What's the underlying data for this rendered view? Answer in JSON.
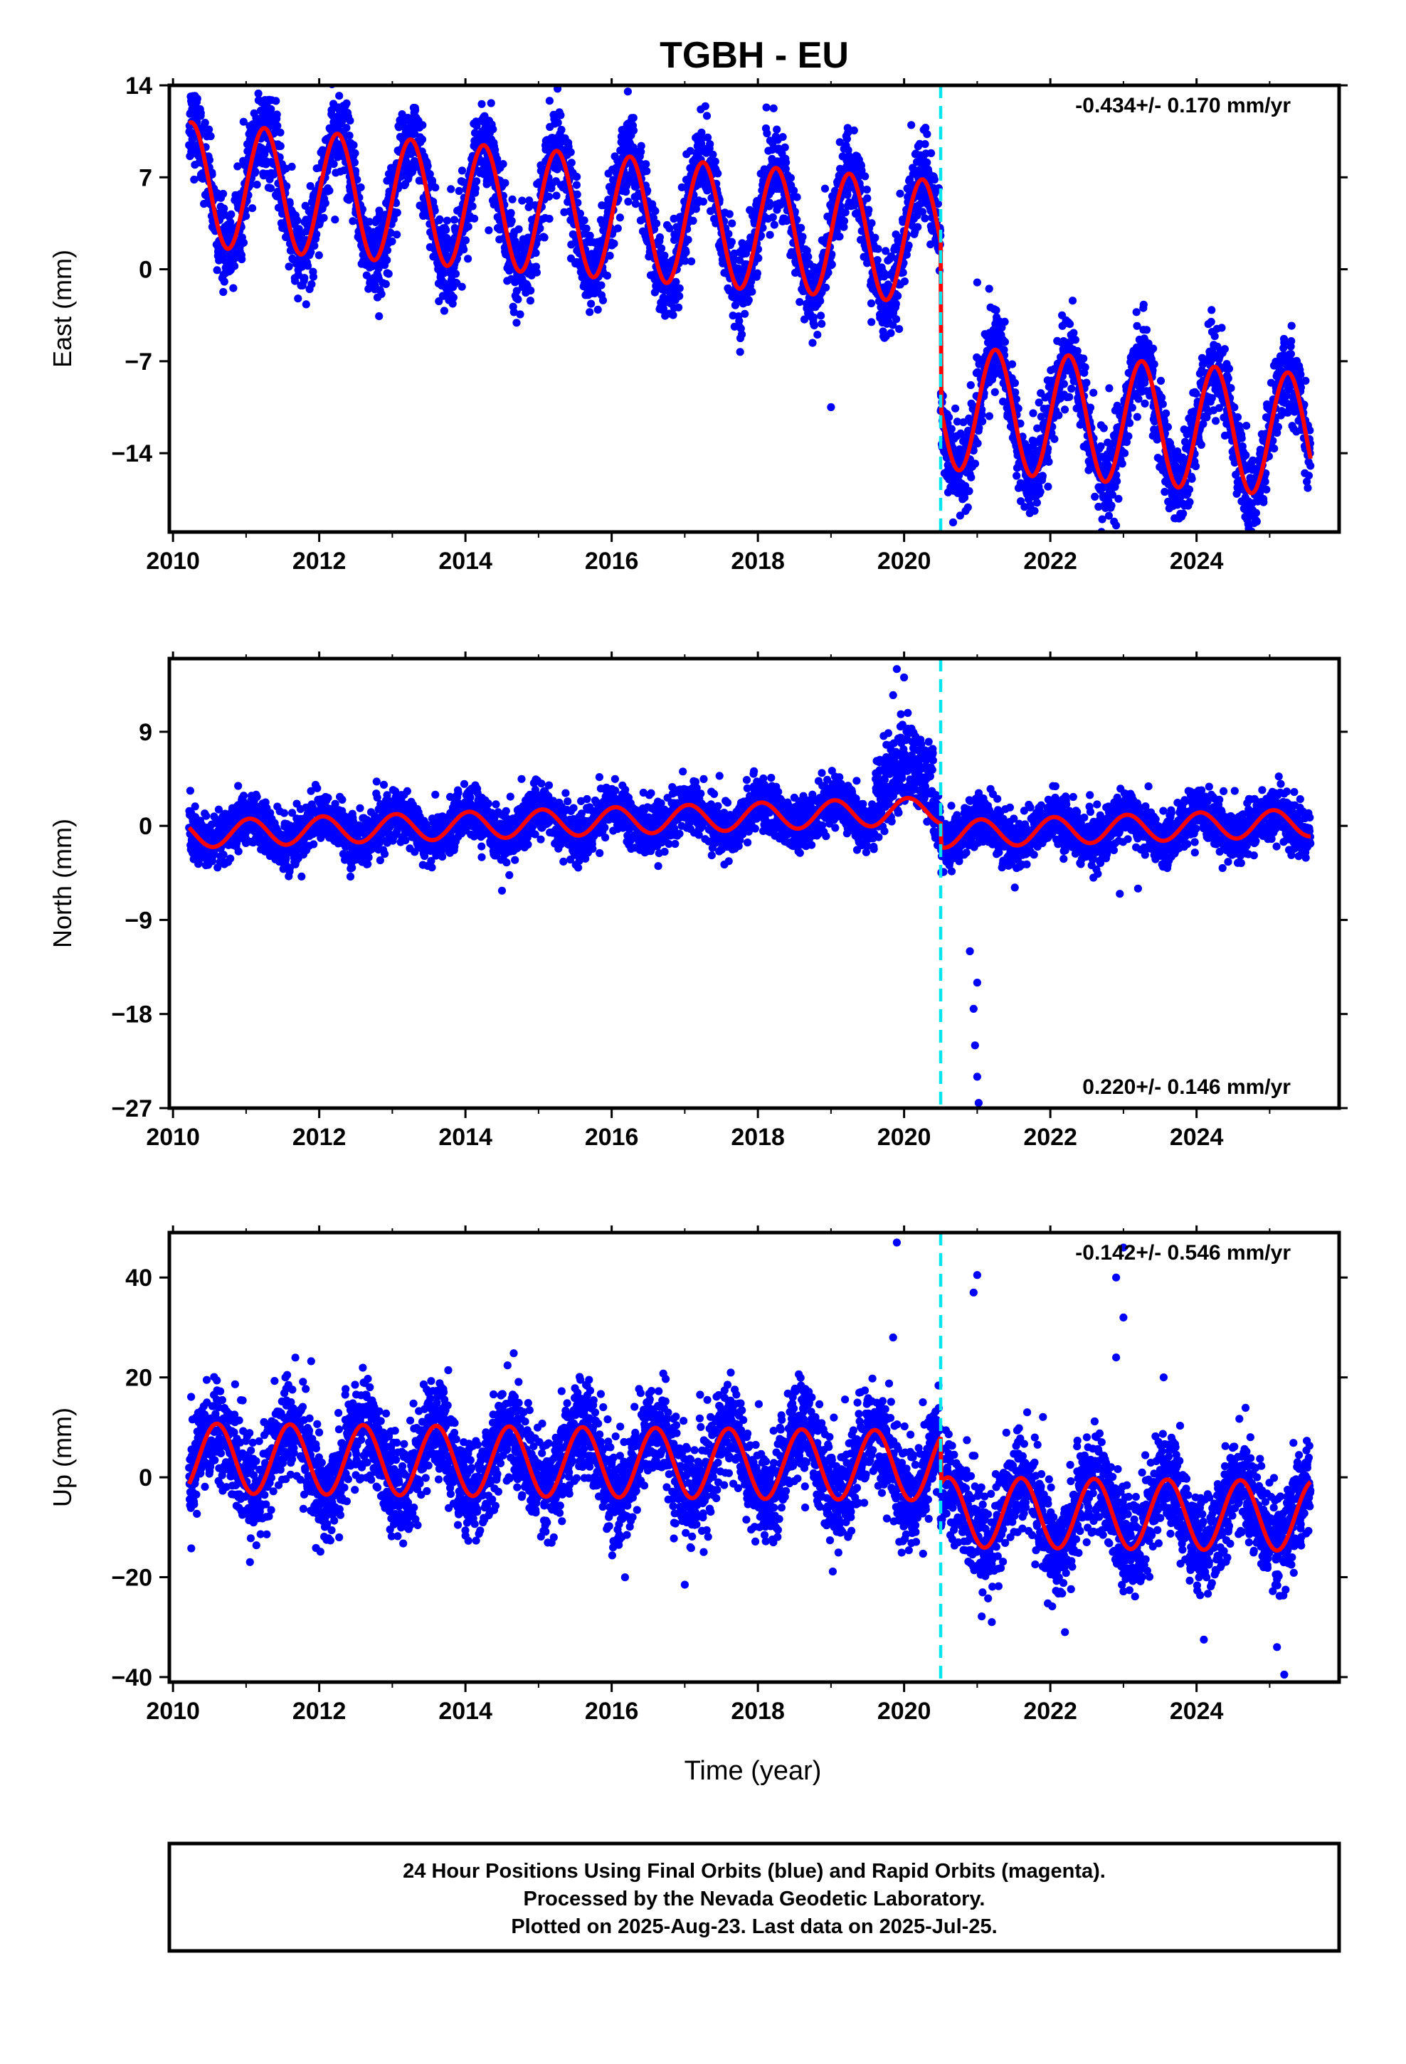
{
  "title": "TGBH - EU",
  "x_ticks": [
    "2010",
    "2012",
    "2014",
    "2016",
    "2018",
    "2020",
    "2022",
    "2024"
  ],
  "x_label": "Time (year)",
  "series_colors": {
    "points": "#0000ff",
    "model": "#ff0000",
    "offset_line": "#00e5ee"
  },
  "chart_data": [
    {
      "type": "scatter",
      "ylabel": "East (mm)",
      "xlim": [
        2009.95,
        2025.95
      ],
      "ylim": [
        -20,
        14
      ],
      "y_ticks": [
        "14",
        "7",
        "0",
        "−7",
        "−14"
      ],
      "offset_epoch": 2020.5,
      "rate_text": "-0.434+/- 0.170 mm/yr",
      "rate_position": "top-right",
      "data_span": [
        2010.22,
        2025.56
      ],
      "model": {
        "kind": "linear-plus-annual-with-step",
        "slope_mm_per_yr": -0.434,
        "annual_amplitude_mm": 4.7,
        "annual_peak_frac": 0.25,
        "segments": [
          {
            "from": 2010.22,
            "to": 2020.5,
            "offset_mm": 6.5,
            "ref_year": 2010.2
          },
          {
            "from": 2020.5,
            "to": 2025.56,
            "offset_mm": -10.5,
            "ref_year": 2020.5
          }
        ]
      },
      "scatter_sd_mm": 1.6,
      "outliers": [
        [
          2021.0,
          -1.0
        ],
        [
          2022.9,
          -19.5
        ],
        [
          2020.8,
          -17.5
        ],
        [
          2024.2,
          -4.0
        ],
        [
          2019.0,
          -10.5
        ],
        [
          2010.3,
          13.2
        ]
      ]
    },
    {
      "type": "scatter",
      "ylabel": "North (mm)",
      "xlim": [
        2009.95,
        2025.95
      ],
      "ylim": [
        -27,
        16
      ],
      "y_ticks": [
        "9",
        "0",
        "−9",
        "−18",
        "−27"
      ],
      "offset_epoch": 2020.5,
      "rate_text": "0.220+/- 0.146 mm/yr",
      "rate_position": "bottom-right",
      "data_span": [
        2010.22,
        2025.56
      ],
      "model": {
        "kind": "linear-plus-annual-with-step",
        "slope_mm_per_yr": 0.22,
        "annual_amplitude_mm": 1.3,
        "annual_peak_frac": 0.05,
        "segments": [
          {
            "from": 2010.22,
            "to": 2020.5,
            "offset_mm": -0.8,
            "ref_year": 2010.2
          },
          {
            "from": 2020.5,
            "to": 2025.56,
            "offset_mm": -0.8,
            "ref_year": 2020.5
          }
        ]
      },
      "scatter_sd_mm": 1.2,
      "outliers": [
        [
          2019.9,
          15.0
        ],
        [
          2020.0,
          14.2
        ],
        [
          2019.85,
          12.5
        ],
        [
          2020.05,
          10.8
        ],
        [
          2019.95,
          9.5
        ],
        [
          2021.0,
          -24.0
        ],
        [
          2021.02,
          -26.5
        ],
        [
          2020.97,
          -21.0
        ],
        [
          2020.95,
          -17.5
        ],
        [
          2021.0,
          -15.0
        ],
        [
          2020.9,
          -12.0
        ],
        [
          2022.95,
          -6.5
        ],
        [
          2023.2,
          -6.0
        ],
        [
          2014.5,
          -6.2
        ]
      ]
    },
    {
      "type": "scatter",
      "ylabel": "Up (mm)",
      "xlim": [
        2009.95,
        2025.95
      ],
      "ylim": [
        -41,
        49
      ],
      "y_ticks": [
        "40",
        "20",
        "0",
        "−20",
        "−40"
      ],
      "offset_epoch": 2020.5,
      "rate_text": "-0.142+/- 0.546 mm/yr",
      "rate_position": "top-right",
      "data_span": [
        2010.22,
        2025.56
      ],
      "model": {
        "kind": "linear-plus-annual-with-step",
        "slope_mm_per_yr": -0.142,
        "annual_amplitude_mm": 7.0,
        "annual_peak_frac": 0.6,
        "segments": [
          {
            "from": 2010.22,
            "to": 2020.5,
            "offset_mm": 3.8,
            "ref_year": 2010.2
          },
          {
            "from": 2020.5,
            "to": 2025.56,
            "offset_mm": -7.0,
            "ref_year": 2020.5
          }
        ]
      },
      "scatter_sd_mm": 5.0,
      "outliers": [
        [
          2019.9,
          47.0
        ],
        [
          2021.0,
          40.5
        ],
        [
          2020.95,
          37.0
        ],
        [
          2023.0,
          46.0
        ],
        [
          2022.9,
          40.0
        ],
        [
          2023.0,
          32.0
        ],
        [
          2019.85,
          28.0
        ],
        [
          2022.9,
          24.0
        ],
        [
          2023.55,
          20.0
        ],
        [
          2017.0,
          -21.5
        ],
        [
          2022.2,
          -31.0
        ],
        [
          2025.2,
          -39.5
        ],
        [
          2025.1,
          -34.0
        ],
        [
          2024.1,
          -32.5
        ],
        [
          2021.2,
          -29.0
        ]
      ]
    }
  ],
  "caption": [
    "24 Hour Positions Using Final Orbits (blue) and Rapid Orbits (magenta).",
    "Processed by the Nevada Geodetic Laboratory.",
    "Plotted on 2025-Aug-23. Last data on 2025-Jul-25."
  ]
}
